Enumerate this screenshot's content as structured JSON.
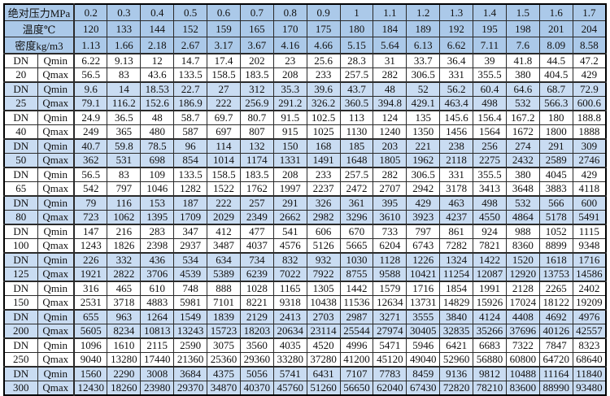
{
  "header": {
    "pressure_label": "绝对压力MPa",
    "pressure_values": [
      "0.2",
      "0.3",
      "0.4",
      "0.5",
      "0.6",
      "0.7",
      "0.8",
      "0.9",
      "1",
      "1.1",
      "1.2",
      "1.3",
      "1.4",
      "1.5",
      "1.6",
      "1.7"
    ],
    "temperature_label": "温度℃",
    "temperature_values": [
      "120",
      "133",
      "144",
      "152",
      "159",
      "165",
      "170",
      "175",
      "180",
      "184",
      "189",
      "192",
      "195",
      "198",
      "201",
      "204"
    ],
    "density_label": "密度kg/m3",
    "density_values": [
      "1.13",
      "1.66",
      "2.18",
      "2.67",
      "3.17",
      "3.67",
      "4.16",
      "4.66",
      "5.15",
      "5.64",
      "6.13",
      "6.62",
      "7.11",
      "7.6",
      "8.09",
      "8.58"
    ]
  },
  "row_labels": {
    "dn_prefix": "DN",
    "qmin": "Qmin",
    "qmax": "Qmax"
  },
  "groups": [
    {
      "dn": "20",
      "highlight": false,
      "qmin": [
        "6.22",
        "9.13",
        "12",
        "14.7",
        "17.4",
        "202",
        "23",
        "25.6",
        "28.3",
        "31",
        "33.7",
        "36.4",
        "39",
        "41.8",
        "44.5",
        "47.2"
      ],
      "qmax": [
        "56.5",
        "83",
        "43.6",
        "133.5",
        "158.5",
        "183.5",
        "208",
        "233",
        "257.5",
        "282",
        "306.5",
        "331",
        "355.5",
        "380",
        "404.5",
        "429"
      ]
    },
    {
      "dn": "25",
      "highlight": true,
      "qmin": [
        "9.6",
        "14",
        "18.53",
        "22.7",
        "27",
        "312",
        "35.3",
        "39.6",
        "43.7",
        "48",
        "52",
        "56.2",
        "60.4",
        "64.6",
        "68.7",
        "72.9"
      ],
      "qmax": [
        "79.1",
        "116.2",
        "152.6",
        "186.9",
        "222",
        "256.9",
        "291.2",
        "326.2",
        "360.5",
        "394.8",
        "429.1",
        "463.4",
        "498",
        "532",
        "566.3",
        "600.6"
      ]
    },
    {
      "dn": "40",
      "highlight": false,
      "qmin": [
        "24.9",
        "36.5",
        "48",
        "58.7",
        "69.7",
        "80.7",
        "91.5",
        "102.5",
        "113",
        "124",
        "135",
        "145.6",
        "156.4",
        "167.2",
        "180",
        "188.8"
      ],
      "qmax": [
        "249",
        "365",
        "480",
        "587",
        "697",
        "807",
        "915",
        "1025",
        "1130",
        "1240",
        "1350",
        "1456",
        "1564",
        "1672",
        "1800",
        "1888"
      ]
    },
    {
      "dn": "50",
      "highlight": true,
      "qmin": [
        "40.7",
        "59.8",
        "78.5",
        "96",
        "114",
        "132",
        "150",
        "168",
        "185",
        "203",
        "221",
        "238",
        "256",
        "274",
        "291",
        "309"
      ],
      "qmax": [
        "362",
        "531",
        "698",
        "854",
        "1014",
        "1174",
        "1331",
        "1491",
        "1648",
        "1805",
        "1962",
        "2118",
        "2275",
        "2432",
        "2589",
        "2746"
      ]
    },
    {
      "dn": "65",
      "highlight": false,
      "qmin": [
        "56.5",
        "83",
        "109",
        "133.5",
        "158.5",
        "183.5",
        "208",
        "233",
        "257.5",
        "282",
        "306.5",
        "331",
        "355.5",
        "380",
        "4045",
        "429"
      ],
      "qmax": [
        "542",
        "797",
        "1046",
        "1282",
        "1522",
        "1762",
        "1997",
        "2237",
        "2472",
        "2707",
        "2942",
        "3178",
        "3413",
        "3648",
        "3883",
        "4118"
      ]
    },
    {
      "dn": "80",
      "highlight": true,
      "qmin": [
        "79",
        "116",
        "153",
        "187",
        "222",
        "257",
        "291",
        "326",
        "361",
        "395",
        "429",
        "463",
        "498",
        "532",
        "566",
        "600"
      ],
      "qmax": [
        "723",
        "1062",
        "1395",
        "1709",
        "2029",
        "2349",
        "2662",
        "2982",
        "3296",
        "3610",
        "3923",
        "4237",
        "4550",
        "4864",
        "5178",
        "5491"
      ]
    },
    {
      "dn": "100",
      "highlight": false,
      "qmin": [
        "147",
        "216",
        "283",
        "347",
        "412",
        "477",
        "541",
        "606",
        "670",
        "733",
        "797",
        "861",
        "924",
        "988",
        "1052",
        "1115"
      ],
      "qmax": [
        "1243",
        "1826",
        "2398",
        "2937",
        "3487",
        "4037",
        "4576",
        "5126",
        "5665",
        "6204",
        "6743",
        "7282",
        "7821",
        "8360",
        "8899",
        "9348"
      ]
    },
    {
      "dn": "125",
      "highlight": true,
      "qmin": [
        "226",
        "332",
        "436",
        "534",
        "634",
        "734",
        "832",
        "932",
        "1030",
        "1128",
        "1226",
        "1324",
        "1422",
        "1520",
        "1618",
        "1716"
      ],
      "qmax": [
        "1921",
        "2822",
        "3706",
        "4539",
        "5389",
        "6239",
        "7022",
        "7922",
        "8755",
        "9588",
        "10421",
        "11254",
        "12087",
        "12920",
        "13753",
        "14586"
      ]
    },
    {
      "dn": "150",
      "highlight": false,
      "qmin": [
        "316",
        "465",
        "610",
        "748",
        "888",
        "1028",
        "1165",
        "1305",
        "1442",
        "1579",
        "1716",
        "1854",
        "1991",
        "2128",
        "2265",
        "2402"
      ],
      "qmax": [
        "2531",
        "3718",
        "4883",
        "5981",
        "7101",
        "8221",
        "9318",
        "10438",
        "11536",
        "12634",
        "13731",
        "14829",
        "15926",
        "17024",
        "18122",
        "19209"
      ]
    },
    {
      "dn": "200",
      "highlight": true,
      "qmin": [
        "655",
        "963",
        "1264",
        "1549",
        "1839",
        "2129",
        "2413",
        "2703",
        "2987",
        "3271",
        "3555",
        "3840",
        "4124",
        "4408",
        "4692",
        "4976"
      ],
      "qmax": [
        "5605",
        "8234",
        "10813",
        "13243",
        "15723",
        "18203",
        "20634",
        "23114",
        "25544",
        "27974",
        "30405",
        "32835",
        "35266",
        "37696",
        "40126",
        "42557"
      ]
    },
    {
      "dn": "250",
      "highlight": false,
      "qmin": [
        "1096",
        "1610",
        "2115",
        "2590",
        "3075",
        "3560",
        "4035",
        "4520",
        "4996",
        "5471",
        "5946",
        "6421",
        "6683",
        "7322",
        "7847",
        "8323"
      ],
      "qmax": [
        "9040",
        "13280",
        "17440",
        "21360",
        "25360",
        "29360",
        "33280",
        "37280",
        "41200",
        "45120",
        "49040",
        "52960",
        "56880",
        "60800",
        "64720",
        "68640"
      ]
    },
    {
      "dn": "300",
      "highlight": true,
      "qmin": [
        "1560",
        "2290",
        "3008",
        "3684",
        "4375",
        "5056",
        "5741",
        "6431",
        "7107",
        "7783",
        "8459",
        "9136",
        "9812",
        "10488",
        "11164",
        "11840"
      ],
      "qmax": [
        "12430",
        "18260",
        "23980",
        "29370",
        "34870",
        "40370",
        "45760",
        "51260",
        "56650",
        "62040",
        "67430",
        "72820",
        "78210",
        "83600",
        "88990",
        "93480"
      ]
    }
  ],
  "colors": {
    "header_bg": "#abc9e9",
    "band_bg": "#c9dcf2",
    "grid": "#2a2a2a",
    "outer_border": "#000000",
    "text": "#111111"
  }
}
